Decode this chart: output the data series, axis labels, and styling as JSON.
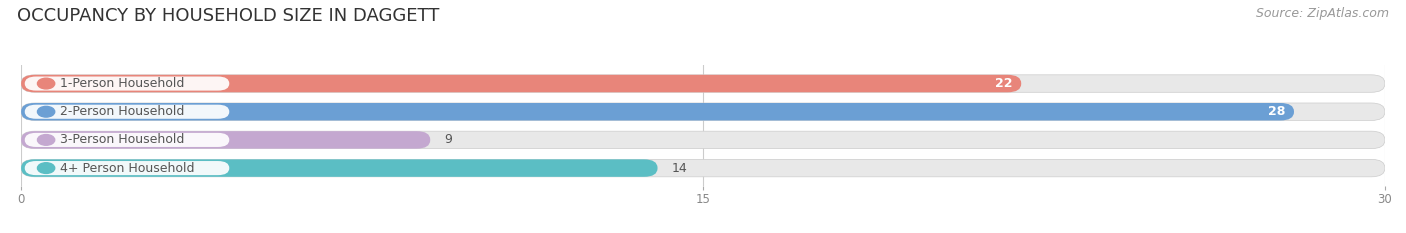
{
  "title": "OCCUPANCY BY HOUSEHOLD SIZE IN DAGGETT",
  "source": "Source: ZipAtlas.com",
  "categories": [
    "1-Person Household",
    "2-Person Household",
    "3-Person Household",
    "4+ Person Household"
  ],
  "values": [
    22,
    28,
    9,
    14
  ],
  "bar_colors": [
    "#e8857a",
    "#6b9fd4",
    "#c4a8d0",
    "#5bbec4"
  ],
  "value_in_bar": [
    true,
    true,
    false,
    false
  ],
  "xlim": [
    0,
    30
  ],
  "xticks": [
    0,
    15,
    30
  ],
  "fig_bg_color": "#ffffff",
  "bar_bg_color": "#e8e8e8",
  "title_fontsize": 13,
  "source_fontsize": 9,
  "label_fontsize": 9,
  "value_fontsize": 9,
  "title_color": "#333333",
  "source_color": "#999999",
  "label_color": "#555555",
  "tick_color": "#888888",
  "value_color_inside": "#ffffff",
  "value_color_outside": "#555555"
}
